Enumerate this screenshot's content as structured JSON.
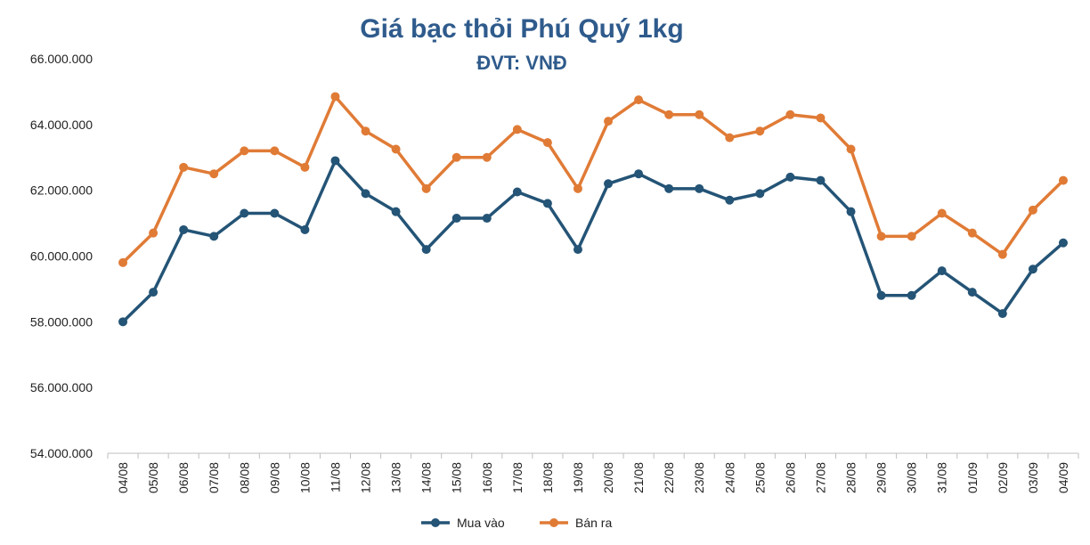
{
  "chart_data": {
    "type": "line",
    "title": "Giá bạc thỏi Phú Quý 1kg",
    "subtitle": "ĐVT: VNĐ",
    "xlabel": "",
    "ylabel": "",
    "ylim": [
      54000000,
      66000000
    ],
    "y_ticks": [
      "54.000.000",
      "56.000.000",
      "58.000.000",
      "60.000.000",
      "62.000.000",
      "64.000.000",
      "66.000.000"
    ],
    "categories": [
      "04/08",
      "05/08",
      "06/08",
      "07/08",
      "08/08",
      "09/08",
      "10/08",
      "11/08",
      "12/08",
      "13/08",
      "14/08",
      "15/08",
      "16/08",
      "17/08",
      "18/08",
      "19/08",
      "20/08",
      "21/08",
      "22/08",
      "23/08",
      "24/08",
      "25/08",
      "26/08",
      "27/08",
      "28/08",
      "29/08",
      "30/08",
      "31/08",
      "01/09",
      "02/09",
      "03/09",
      "04/09"
    ],
    "series": [
      {
        "name": "Mua vào",
        "color": "#245476",
        "values": [
          58000000,
          58900000,
          60800000,
          60600000,
          61300000,
          61300000,
          60800000,
          62900000,
          61900000,
          61350000,
          60200000,
          61150000,
          61150000,
          61950000,
          61600000,
          60200000,
          62200000,
          62500000,
          62050000,
          62050000,
          61700000,
          61900000,
          62400000,
          62300000,
          61350000,
          58800000,
          58800000,
          59550000,
          58900000,
          58250000,
          59600000,
          60400000
        ]
      },
      {
        "name": "Bán ra",
        "color": "#e07b36",
        "values": [
          59800000,
          60700000,
          62700000,
          62500000,
          63200000,
          63200000,
          62700000,
          64850000,
          63800000,
          63250000,
          62050000,
          63000000,
          63000000,
          63850000,
          63450000,
          62050000,
          64100000,
          64750000,
          64300000,
          64300000,
          63600000,
          63800000,
          64300000,
          64200000,
          63250000,
          60600000,
          60600000,
          61300000,
          60700000,
          60050000,
          61400000,
          62300000
        ]
      }
    ],
    "grid": false,
    "legend_position": "bottom"
  }
}
